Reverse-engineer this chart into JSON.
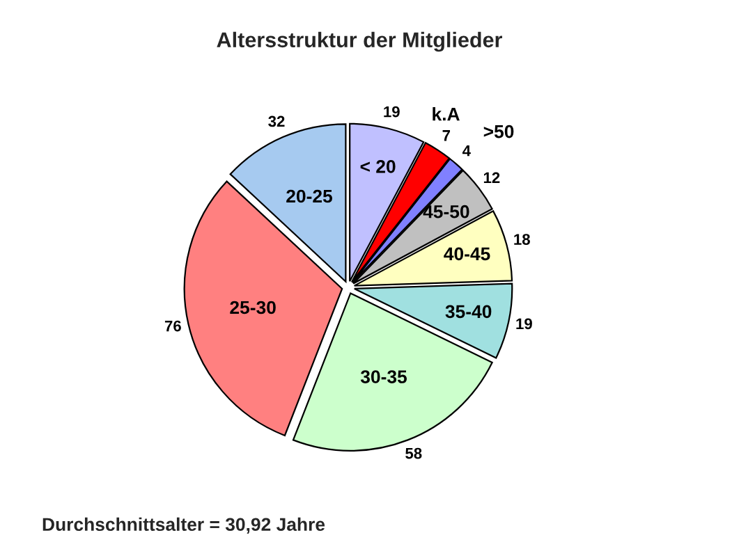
{
  "chart_data": {
    "type": "pie",
    "title": "Altersstruktur der Mitglieder",
    "categories": [
      "< 20",
      "k.A",
      ">50",
      "45-50",
      "40-45",
      "35-40",
      "30-35",
      "25-30",
      "20-25"
    ],
    "values": [
      19,
      7,
      4,
      12,
      18,
      19,
      58,
      76,
      32
    ],
    "colors": [
      "#c0c0ff",
      "#ff0000",
      "#8080ff",
      "#c0c0c0",
      "#ffffc0",
      "#a0e0e0",
      "#ccffcc",
      "#ff8080",
      "#a6caf0"
    ],
    "data_labels": true,
    "annotations": [
      "Durchschnittsalter = 30,92 Jahre"
    ]
  }
}
